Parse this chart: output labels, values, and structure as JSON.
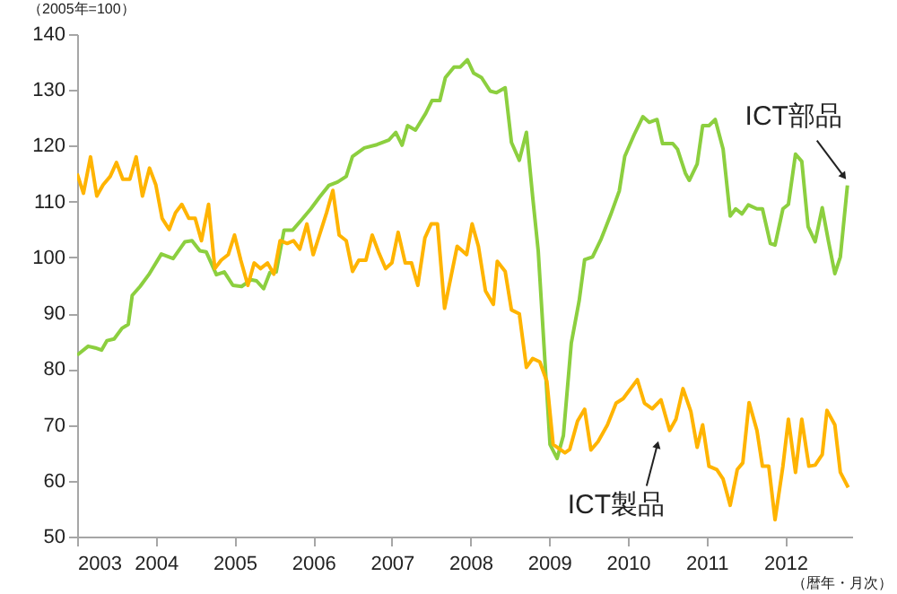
{
  "chart_data": {
    "type": "line",
    "xlabel": "（暦年・月次）",
    "ylabel": "（2005年=100）",
    "xlim": [
      2003,
      2012.85
    ],
    "ylim": [
      50,
      140
    ],
    "xticks": [
      {
        "value": 2003,
        "label": "2003"
      },
      {
        "value": 2004,
        "label": "2004"
      },
      {
        "value": 2005,
        "label": "2005"
      },
      {
        "value": 2006,
        "label": "2006"
      },
      {
        "value": 2007,
        "label": "2007"
      },
      {
        "value": 2008,
        "label": "2008"
      },
      {
        "value": 2009,
        "label": "2009"
      },
      {
        "value": 2010,
        "label": "2010"
      },
      {
        "value": 2011,
        "label": "2011"
      },
      {
        "value": 2012,
        "label": "2012"
      }
    ],
    "yticks": [
      50,
      60,
      70,
      80,
      90,
      100,
      110,
      120,
      130,
      140
    ],
    "series": [
      {
        "name": "ICT部品",
        "color": "#8ccf3f",
        "x": [
          2003.0,
          2003.14,
          2003.23,
          2003.31,
          2003.38,
          2003.47,
          2003.57,
          2003.65,
          2003.7,
          2003.8,
          2003.91,
          2004.07,
          2004.22,
          2004.37,
          2004.46,
          2004.56,
          2004.64,
          2004.77,
          2004.87,
          2004.98,
          2005.09,
          2005.21,
          2005.28,
          2005.37,
          2005.45,
          2005.53,
          2005.63,
          2005.74,
          2005.85,
          2005.97,
          2006.08,
          2006.2,
          2006.31,
          2006.42,
          2006.5,
          2006.65,
          2006.81,
          2006.96,
          2007.05,
          2007.13,
          2007.2,
          2007.3,
          2007.43,
          2007.51,
          2007.61,
          2007.68,
          2007.79,
          2007.87,
          2007.96,
          2008.04,
          2008.14,
          2008.25,
          2008.33,
          2008.44,
          2008.52,
          2008.62,
          2008.71,
          2008.79,
          2008.86,
          2009.01,
          2009.1,
          2009.18,
          2009.28,
          2009.38,
          2009.45,
          2009.55,
          2009.66,
          2009.78,
          2009.89,
          2009.96,
          2010.08,
          2010.19,
          2010.27,
          2010.37,
          2010.44,
          2010.57,
          2010.63,
          2010.73,
          2010.78,
          2010.88,
          2010.95,
          2011.03,
          2011.11,
          2011.21,
          2011.3,
          2011.37,
          2011.45,
          2011.53,
          2011.64,
          2011.71,
          2011.81,
          2011.87,
          2011.97,
          2012.04,
          2012.13,
          2012.21,
          2012.29,
          2012.38,
          2012.47,
          2012.55,
          2012.63,
          2012.7,
          2012.79
        ],
        "values": [
          82.5,
          84.1,
          83.8,
          83.4,
          85.1,
          85.4,
          87.3,
          88,
          93.2,
          94.8,
          96.9,
          100.6,
          99.8,
          102.8,
          103,
          101.2,
          101,
          96.9,
          97.4,
          95,
          94.8,
          96,
          95.8,
          94.4,
          97.3,
          97.4,
          104.9,
          104.9,
          106.7,
          108.7,
          110.8,
          112.9,
          113.5,
          114.5,
          118.1,
          119.6,
          120.2,
          121,
          122.4,
          120.1,
          123.6,
          122.8,
          125.8,
          128.1,
          128.1,
          132.2,
          134.1,
          134.1,
          135.4,
          133,
          132.2,
          129.8,
          129.5,
          130.4,
          120.6,
          117.4,
          122.4,
          110.8,
          101.2,
          66.5,
          64,
          68.1,
          84.6,
          92.2,
          99.6,
          100.1,
          103.3,
          107.6,
          111.9,
          118.1,
          122,
          125.2,
          124.2,
          124.7,
          120.4,
          120.4,
          119.4,
          115.1,
          113.8,
          116.7,
          123.6,
          123.6,
          124.7,
          119.4,
          107.4,
          108.7,
          107.8,
          109.4,
          108.7,
          108.7,
          102.5,
          102.2,
          108.7,
          109.5,
          118.5,
          117.2,
          105.5,
          102.8,
          108.9,
          102.8,
          97.1,
          100.1,
          112.9
        ]
      },
      {
        "name": "ICT製品",
        "color": "#ffb400",
        "x": [
          2003.0,
          2003.08,
          2003.17,
          2003.25,
          2003.33,
          2003.42,
          2003.5,
          2003.58,
          2003.67,
          2003.75,
          2003.83,
          2003.92,
          2004.0,
          2004.08,
          2004.17,
          2004.25,
          2004.33,
          2004.42,
          2004.5,
          2004.58,
          2004.67,
          2004.75,
          2004.83,
          2004.92,
          2005.0,
          2005.08,
          2005.17,
          2005.25,
          2005.33,
          2005.42,
          2005.5,
          2005.58,
          2005.67,
          2005.75,
          2005.83,
          2005.92,
          2006.0,
          2006.08,
          2006.17,
          2006.25,
          2006.33,
          2006.42,
          2006.5,
          2006.58,
          2006.67,
          2006.75,
          2006.83,
          2006.92,
          2007.0,
          2007.08,
          2007.17,
          2007.25,
          2007.33,
          2007.42,
          2007.5,
          2007.58,
          2007.67,
          2007.83,
          2007.95,
          2008.02,
          2008.1,
          2008.19,
          2008.29,
          2008.34,
          2008.44,
          2008.52,
          2008.62,
          2008.71,
          2008.79,
          2008.88,
          2008.97,
          2009.05,
          2009.2,
          2009.26,
          2009.36,
          2009.45,
          2009.53,
          2009.62,
          2009.74,
          2009.85,
          2009.94,
          2010.12,
          2010.21,
          2010.31,
          2010.42,
          2010.53,
          2010.61,
          2010.7,
          2010.8,
          2010.88,
          2010.95,
          2011.03,
          2011.13,
          2011.21,
          2011.3,
          2011.39,
          2011.46,
          2011.54,
          2011.64,
          2011.71,
          2011.79,
          2011.87,
          2011.97,
          2012.04,
          2012.13,
          2012.21,
          2012.3,
          2012.38,
          2012.47,
          2012.53,
          2012.63,
          2012.7,
          2012.8
        ],
        "values": [
          115,
          111.5,
          118,
          111,
          113,
          114.5,
          117,
          114,
          114,
          118,
          111,
          116,
          113,
          107,
          105,
          108,
          109.5,
          107,
          107,
          103,
          109.5,
          98,
          99.5,
          100.5,
          104,
          99.5,
          95,
          99,
          98,
          99,
          97,
          103,
          102.5,
          103,
          101.5,
          106,
          100.5,
          104,
          108,
          112,
          104,
          103,
          97.5,
          99.5,
          99.5,
          104,
          101,
          98,
          99,
          104.5,
          99,
          99,
          95,
          103.5,
          106,
          106,
          90.9,
          102,
          100.5,
          106,
          102,
          94,
          91.6,
          99.3,
          97.5,
          90.6,
          89.9,
          80.3,
          81.9,
          81.3,
          77.8,
          66.5,
          65,
          65.6,
          70.7,
          72.8,
          65.5,
          67,
          70,
          73.9,
          74.7,
          78.1,
          73.9,
          72.9,
          74.5,
          69,
          71,
          76.5,
          72.4,
          66,
          70,
          62.6,
          62,
          60.3,
          55.6,
          62,
          63.2,
          74,
          69,
          62.6,
          62.6,
          53,
          62.6,
          71,
          61.5,
          71,
          62.6,
          62.8,
          64.7,
          72.6,
          70,
          61.5,
          58.8
        ]
      }
    ]
  }
}
